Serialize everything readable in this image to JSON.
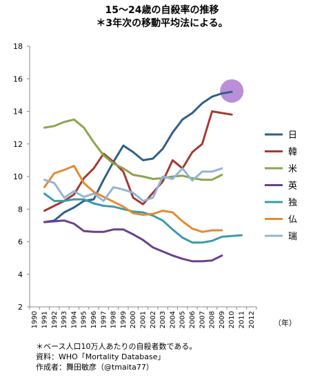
{
  "chart_data": {
    "type": "line",
    "title_lines": [
      "15～24歳の自殺率の推移",
      "＊3年次の移動平均法による。"
    ],
    "xlabel": "（年）",
    "x": [
      1990,
      1991,
      1992,
      1993,
      1994,
      1995,
      1996,
      1997,
      1998,
      1999,
      2000,
      2001,
      2002,
      2003,
      2004,
      2005,
      2006,
      2007,
      2008,
      2009,
      2010,
      2011,
      2012
    ],
    "ylim": [
      2,
      18
    ],
    "yticks": [
      2,
      4,
      6,
      8,
      10,
      12,
      14,
      16,
      18
    ],
    "grid": false,
    "legend_position": "right",
    "series": [
      {
        "name": "日",
        "color": "#2e5f8a",
        "x": [
          1991,
          1992,
          1993,
          1994,
          1995,
          1996,
          1997,
          1998,
          1999,
          2000,
          2001,
          2002,
          2003,
          2004,
          2005,
          2006,
          2007,
          2008,
          2009,
          2010
        ],
        "values": [
          7.2,
          7.3,
          7.8,
          8.1,
          8.5,
          8.6,
          9.8,
          10.9,
          11.9,
          11.5,
          11.0,
          11.1,
          11.7,
          12.7,
          13.5,
          13.9,
          14.5,
          14.9,
          15.1,
          15.2
        ]
      },
      {
        "name": "韓",
        "color": "#a33a32",
        "x": [
          1991,
          1992,
          1993,
          1994,
          1995,
          1996,
          1997,
          1998,
          1999,
          2000,
          2001,
          2002,
          2003,
          2004,
          2005,
          2006,
          2007,
          2008,
          2009,
          2010
        ],
        "values": [
          7.9,
          8.2,
          8.5,
          8.9,
          9.9,
          10.5,
          11.4,
          10.9,
          10.3,
          8.7,
          8.3,
          9.0,
          9.7,
          11.0,
          10.5,
          11.5,
          12.0,
          14.0,
          13.9,
          13.8
        ]
      },
      {
        "name": "米",
        "color": "#8aa54a",
        "x": [
          1991,
          1992,
          1993,
          1994,
          1995,
          1996,
          1997,
          1998,
          1999,
          2000,
          2001,
          2002,
          2003,
          2004,
          2005,
          2006,
          2007,
          2008,
          2009
        ],
        "values": [
          13.0,
          13.1,
          13.35,
          13.5,
          13.0,
          12.1,
          11.3,
          10.8,
          10.5,
          10.1,
          10.0,
          9.85,
          9.9,
          10.0,
          10.05,
          9.9,
          9.8,
          9.8,
          10.1
        ]
      },
      {
        "name": "英",
        "color": "#6b3f8c",
        "x": [
          1991,
          1992,
          1993,
          1994,
          1995,
          1996,
          1997,
          1998,
          1999,
          2000,
          2001,
          2002,
          2003,
          2004,
          2005,
          2006,
          2007,
          2008,
          2009
        ],
        "values": [
          7.2,
          7.25,
          7.3,
          7.1,
          6.65,
          6.6,
          6.6,
          6.75,
          6.75,
          6.45,
          6.1,
          5.65,
          5.4,
          5.15,
          4.95,
          4.8,
          4.8,
          4.85,
          5.15
        ]
      },
      {
        "name": "独",
        "color": "#3a9aa8",
        "x": [
          1991,
          1992,
          1993,
          1994,
          1995,
          1996,
          1997,
          1998,
          1999,
          2000,
          2001,
          2002,
          2003,
          2004,
          2005,
          2006,
          2007,
          2008,
          2009,
          2010,
          2011
        ],
        "values": [
          8.95,
          8.5,
          8.5,
          8.6,
          8.6,
          8.35,
          8.2,
          8.15,
          8.0,
          7.85,
          7.8,
          7.6,
          7.3,
          6.75,
          6.25,
          5.95,
          5.95,
          6.05,
          6.3,
          6.35,
          6.4
        ]
      },
      {
        "name": "仏",
        "color": "#e58a2e",
        "x": [
          1991,
          1992,
          1993,
          1994,
          1995,
          1996,
          1997,
          1998,
          1999,
          2000,
          2001,
          2002,
          2003,
          2004,
          2005,
          2006,
          2007,
          2008,
          2009
        ],
        "values": [
          9.35,
          10.2,
          10.4,
          10.65,
          9.6,
          9.05,
          8.75,
          8.45,
          8.15,
          7.75,
          7.65,
          7.7,
          7.9,
          7.8,
          7.25,
          6.8,
          6.6,
          6.7,
          6.7
        ]
      },
      {
        "name": "瑞",
        "color": "#95b3d7",
        "x": [
          1991,
          1992,
          1993,
          1994,
          1995,
          1996,
          1997,
          1998,
          1999,
          2000,
          2001,
          2002,
          2003,
          2004,
          2005,
          2006,
          2007,
          2008,
          2009
        ],
        "values": [
          9.8,
          9.6,
          8.7,
          9.1,
          8.75,
          8.95,
          8.5,
          9.35,
          9.2,
          9.0,
          8.5,
          8.7,
          10.0,
          9.85,
          10.5,
          9.75,
          10.3,
          10.3,
          10.5
        ]
      }
    ],
    "highlight": {
      "x": 2010,
      "y": 15.25,
      "color": "#b98fd9"
    }
  },
  "footnotes": [
    "＊ベース人口10万人あたりの自殺者数である。",
    "資料：WHO「Mortality Database」",
    "作成者：舞田敏彦（@tmaita77）"
  ]
}
